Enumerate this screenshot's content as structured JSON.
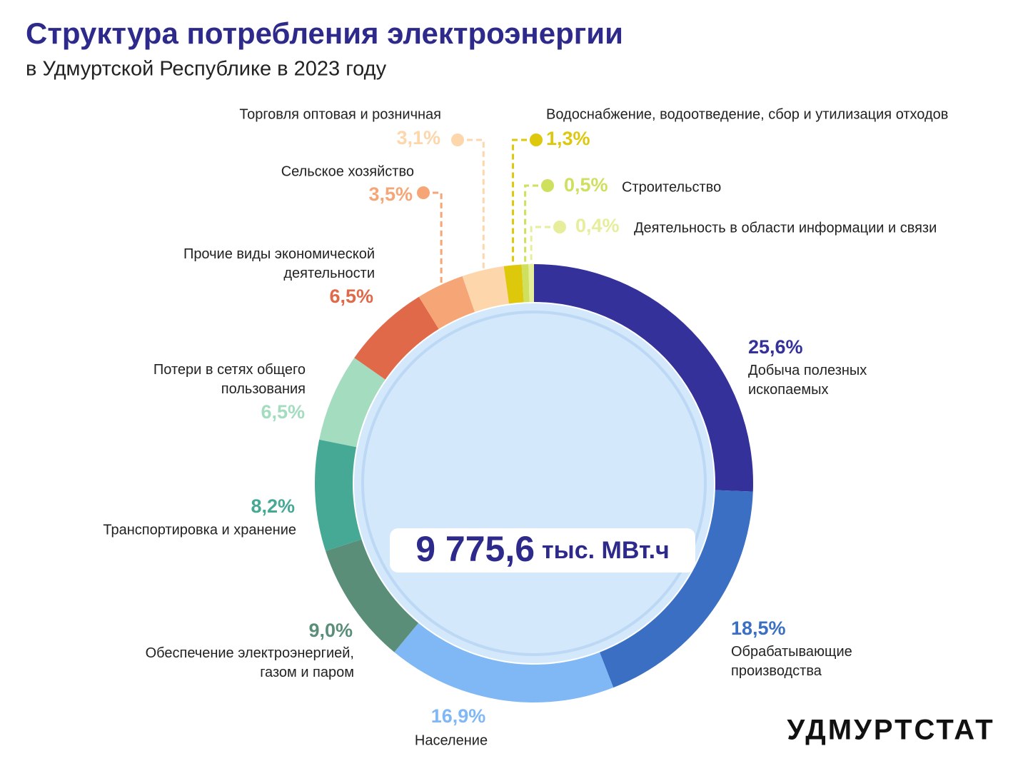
{
  "chart_data": {
    "type": "donut",
    "title": "Структура потребления электроэнергии",
    "subtitle": "в Удмуртской Республике в 2023 году",
    "center_value": "9 775,6",
    "center_unit": "тыс. МВт.ч",
    "source": "УДМУРТСТАТ",
    "categories": [
      "Добыча полезных ископаемых",
      "Обрабатывающие производства",
      "Население",
      "Обеспечение электроэнергией, газом и паром",
      "Транспортировка и хранение",
      "Потери в сетях общего пользования",
      "Прочие виды экономической деятельности",
      "Сельское хозяйство",
      "Торговля оптовая и розничная",
      "Водоснабжение, водоотведение, сбор и утилизация отходов",
      "Строительство",
      "Деятельность в области информации и связи"
    ],
    "values": [
      25.6,
      18.5,
      16.9,
      9.0,
      8.2,
      6.5,
      6.5,
      3.5,
      3.1,
      1.3,
      0.5,
      0.4
    ],
    "value_labels": [
      "25,6%",
      "18,5%",
      "16,9%",
      "9,0%",
      "8,2%",
      "6,5%",
      "6,5%",
      "3,5%",
      "3,1%",
      "1,3%",
      "0,5%",
      "0,4%"
    ],
    "colors": [
      "#35319a",
      "#3a6fc4",
      "#80b8f6",
      "#5a8e78",
      "#46a995",
      "#a4dcc0",
      "#e0694a",
      "#f6a676",
      "#fdd6ab",
      "#dec80c",
      "#cfdf5e",
      "#e6ee9b"
    ]
  }
}
